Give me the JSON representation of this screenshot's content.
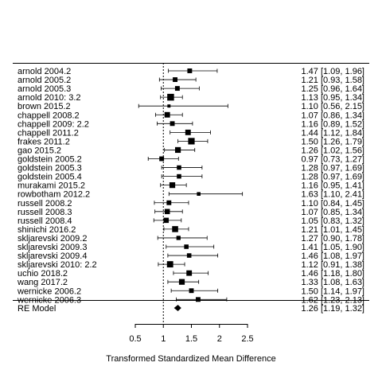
{
  "chart_data": {
    "type": "forest",
    "xlabel": "Transformed Standardized Mean Difference",
    "xlim": [
      0.5,
      2.5
    ],
    "xticks": [
      0.5,
      1,
      1.5,
      2,
      2.5
    ],
    "xtick_labels": [
      "0.5",
      "1",
      "1.5",
      "2",
      "2.5"
    ],
    "reference_line": 1,
    "studies": [
      {
        "label": "arnold 2004.2",
        "est": 1.47,
        "lo": 1.09,
        "hi": 1.96,
        "text": "1.47 [1.09, 1.96]",
        "weight": 0.6
      },
      {
        "label": "arnold 2005.2",
        "est": 1.21,
        "lo": 0.93,
        "hi": 1.58,
        "text": "1.21 [0.93, 1.58]",
        "weight": 0.6
      },
      {
        "label": "arnold 2005.3",
        "est": 1.25,
        "lo": 0.96,
        "hi": 1.64,
        "text": "1.25 [0.96, 1.64]",
        "weight": 0.6
      },
      {
        "label": "arnold 2010: 3.2",
        "est": 1.13,
        "lo": 0.95,
        "hi": 1.34,
        "text": "1.13 [0.95, 1.34]",
        "weight": 1.0
      },
      {
        "label": "brown 2015.2",
        "est": 1.1,
        "lo": 0.56,
        "hi": 2.15,
        "text": "1.10 [0.56, 2.15]",
        "weight": 0.3
      },
      {
        "label": "chappell 2008.2",
        "est": 1.07,
        "lo": 0.86,
        "hi": 1.34,
        "text": "1.07 [0.86, 1.34]",
        "weight": 0.75
      },
      {
        "label": "chappell 2009: 2.2",
        "est": 1.16,
        "lo": 0.89,
        "hi": 1.52,
        "text": "1.16 [0.89, 1.52]",
        "weight": 0.6
      },
      {
        "label": "chappell 2011.2",
        "est": 1.44,
        "lo": 1.12,
        "hi": 1.84,
        "text": "1.44 [1.12, 1.84]",
        "weight": 0.75
      },
      {
        "label": "frakes 2011.2",
        "est": 1.5,
        "lo": 1.26,
        "hi": 1.79,
        "text": "1.50 [1.26, 1.79]",
        "weight": 0.95
      },
      {
        "label": "gao 2015.2",
        "est": 1.26,
        "lo": 1.02,
        "hi": 1.56,
        "text": "1.26 [1.02, 1.56]",
        "weight": 0.8
      },
      {
        "label": "goldstein 2005.2",
        "est": 0.97,
        "lo": 0.73,
        "hi": 1.27,
        "text": "0.97 [0.73, 1.27]",
        "weight": 0.6
      },
      {
        "label": "goldstein 2005.3",
        "est": 1.28,
        "lo": 0.97,
        "hi": 1.69,
        "text": "1.28 [0.97, 1.69]",
        "weight": 0.55
      },
      {
        "label": "goldstein 2005.4",
        "est": 1.28,
        "lo": 0.97,
        "hi": 1.69,
        "text": "1.28 [0.97, 1.69]",
        "weight": 0.55
      },
      {
        "label": "murakami 2015.2",
        "est": 1.16,
        "lo": 0.95,
        "hi": 1.41,
        "text": "1.16 [0.95, 1.41]",
        "weight": 0.8
      },
      {
        "label": "rowbotham 2012.2",
        "est": 1.63,
        "lo": 1.1,
        "hi": 2.41,
        "text": "1.63 [1.10, 2.41]",
        "weight": 0.4
      },
      {
        "label": "russell 2008.2",
        "est": 1.1,
        "lo": 0.84,
        "hi": 1.45,
        "text": "1.10 [0.84, 1.45]",
        "weight": 0.6
      },
      {
        "label": "russell 2008.3",
        "est": 1.07,
        "lo": 0.85,
        "hi": 1.34,
        "text": "1.07 [0.85, 1.34]",
        "weight": 0.7
      },
      {
        "label": "russell 2008.4",
        "est": 1.05,
        "lo": 0.83,
        "hi": 1.32,
        "text": "1.05 [0.83, 1.32]",
        "weight": 0.7
      },
      {
        "label": "shinichi 2016.2",
        "est": 1.21,
        "lo": 1.01,
        "hi": 1.45,
        "text": "1.21 [1.01, 1.45]",
        "weight": 0.85
      },
      {
        "label": "skljarevski 2009.2",
        "est": 1.27,
        "lo": 0.9,
        "hi": 1.78,
        "text": "1.27 [0.90, 1.78]",
        "weight": 0.5
      },
      {
        "label": "skljarevski 2009.3",
        "est": 1.41,
        "lo": 1.05,
        "hi": 1.9,
        "text": "1.41 [1.05, 1.90]",
        "weight": 0.55
      },
      {
        "label": "skljarevski 2009.4",
        "est": 1.46,
        "lo": 1.08,
        "hi": 1.97,
        "text": "1.46 [1.08, 1.97]",
        "weight": 0.55
      },
      {
        "label": "skljarevski 2010: 2.2",
        "est": 1.12,
        "lo": 0.91,
        "hi": 1.38,
        "text": "1.12 [0.91, 1.38]",
        "weight": 0.9
      },
      {
        "label": "uchio 2018.2",
        "est": 1.46,
        "lo": 1.18,
        "hi": 1.8,
        "text": "1.46 [1.18, 1.80]",
        "weight": 0.75
      },
      {
        "label": "wang 2017.2",
        "est": 1.33,
        "lo": 1.08,
        "hi": 1.63,
        "text": "1.33 [1.08, 1.63]",
        "weight": 0.8
      },
      {
        "label": "wernicke 2006.2",
        "est": 1.5,
        "lo": 1.14,
        "hi": 1.97,
        "text": "1.50 [1.14, 1.97]",
        "weight": 0.6
      },
      {
        "label": "wernicke 2006.3",
        "est": 1.62,
        "lo": 1.23,
        "hi": 2.13,
        "text": "1.62 [1.23, 2.13]",
        "weight": 0.6
      }
    ],
    "summary": {
      "label": "RE Model",
      "est": 1.26,
      "lo": 1.19,
      "hi": 1.32,
      "text": "1.26 [1.19, 1.32]"
    }
  }
}
